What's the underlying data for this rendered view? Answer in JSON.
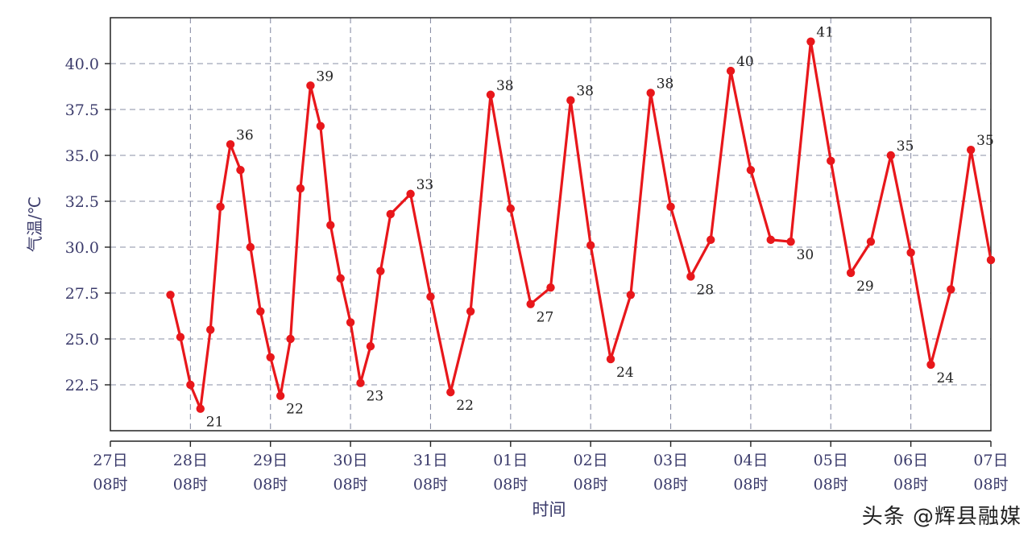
{
  "chart_data": {
    "type": "line",
    "title": "",
    "xlabel": "时间",
    "ylabel": "气温/℃",
    "ylim": [
      20.0,
      42.5
    ],
    "xlim": [
      0,
      11
    ],
    "x_ticks": [
      {
        "day": "27日",
        "hour": "08时"
      },
      {
        "day": "28日",
        "hour": "08时"
      },
      {
        "day": "29日",
        "hour": "08时"
      },
      {
        "day": "30日",
        "hour": "08时"
      },
      {
        "day": "31日",
        "hour": "08时"
      },
      {
        "day": "01日",
        "hour": "08时"
      },
      {
        "day": "02日",
        "hour": "08时"
      },
      {
        "day": "03日",
        "hour": "08时"
      },
      {
        "day": "04日",
        "hour": "08时"
      },
      {
        "day": "05日",
        "hour": "08时"
      },
      {
        "day": "06日",
        "hour": "08时"
      },
      {
        "day": "07日",
        "hour": "08时"
      }
    ],
    "y_ticks": [
      "22.5",
      "25.0",
      "27.5",
      "30.0",
      "32.5",
      "35.0",
      "37.5",
      "40.0"
    ],
    "grid": true,
    "line_color": "#e8171b",
    "series": [
      {
        "x": [
          0.75,
          0.875,
          1.0,
          1.125,
          1.25,
          1.375,
          1.5,
          1.625,
          1.75,
          1.875,
          2.0,
          2.125,
          2.25,
          2.375,
          2.5,
          2.625,
          2.75,
          2.875,
          3.0,
          3.125,
          3.25,
          3.375,
          3.5,
          3.75,
          4.0,
          4.25,
          4.5,
          4.75,
          5.0,
          5.25,
          5.5,
          5.75,
          6.0,
          6.25,
          6.5,
          6.75,
          7.0,
          7.25,
          7.5,
          7.75,
          8.0,
          8.25,
          8.5,
          8.75,
          9.0,
          9.25,
          9.5,
          9.75,
          10.0,
          10.25,
          10.5,
          10.75,
          11.0
        ],
        "y": [
          27.4,
          25.1,
          22.5,
          21.2,
          25.5,
          32.2,
          35.6,
          34.2,
          30.0,
          26.5,
          24.0,
          21.9,
          25.0,
          33.2,
          38.8,
          36.6,
          31.2,
          28.3,
          25.9,
          22.6,
          24.6,
          28.7,
          31.8,
          32.9,
          27.3,
          22.1,
          26.5,
          38.3,
          32.1,
          26.9,
          27.8,
          38.0,
          30.1,
          23.9,
          27.4,
          38.4,
          32.2,
          28.4,
          30.4,
          39.6,
          34.2,
          30.4,
          30.3,
          41.2,
          34.7,
          28.6,
          30.3,
          35.0,
          29.7,
          23.6,
          27.7,
          35.3,
          29.3
        ]
      }
    ],
    "data_labels": [
      {
        "x": 1.125,
        "y": 21.2,
        "text": "21",
        "pos": "below"
      },
      {
        "x": 1.5,
        "y": 35.6,
        "text": "36",
        "pos": "above"
      },
      {
        "x": 2.125,
        "y": 21.9,
        "text": "22",
        "pos": "below"
      },
      {
        "x": 2.5,
        "y": 38.8,
        "text": "39",
        "pos": "above"
      },
      {
        "x": 3.125,
        "y": 22.6,
        "text": "23",
        "pos": "below"
      },
      {
        "x": 3.75,
        "y": 32.9,
        "text": "33",
        "pos": "above"
      },
      {
        "x": 4.25,
        "y": 22.1,
        "text": "22",
        "pos": "below"
      },
      {
        "x": 4.75,
        "y": 38.3,
        "text": "38",
        "pos": "above"
      },
      {
        "x": 5.25,
        "y": 26.9,
        "text": "27",
        "pos": "below"
      },
      {
        "x": 5.75,
        "y": 38.0,
        "text": "38",
        "pos": "above"
      },
      {
        "x": 6.25,
        "y": 23.9,
        "text": "24",
        "pos": "below"
      },
      {
        "x": 6.75,
        "y": 38.4,
        "text": "38",
        "pos": "above"
      },
      {
        "x": 7.25,
        "y": 28.4,
        "text": "28",
        "pos": "below"
      },
      {
        "x": 7.75,
        "y": 39.6,
        "text": "40",
        "pos": "above"
      },
      {
        "x": 8.5,
        "y": 30.3,
        "text": "30",
        "pos": "below"
      },
      {
        "x": 8.75,
        "y": 41.2,
        "text": "41",
        "pos": "above"
      },
      {
        "x": 9.25,
        "y": 28.6,
        "text": "29",
        "pos": "below"
      },
      {
        "x": 9.75,
        "y": 35.0,
        "text": "35",
        "pos": "above"
      },
      {
        "x": 10.25,
        "y": 23.6,
        "text": "24",
        "pos": "below"
      },
      {
        "x": 10.75,
        "y": 35.3,
        "text": "35",
        "pos": "above"
      }
    ]
  },
  "watermark": "头条 @辉县融媒"
}
